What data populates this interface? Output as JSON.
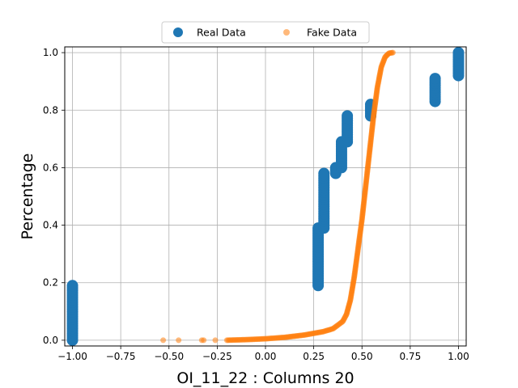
{
  "chart_data": {
    "type": "scatter",
    "title": "",
    "xlabel": "OI_11_22 : Columns 20",
    "ylabel": "Percentage",
    "xlim": [
      -1.04,
      1.04
    ],
    "ylim": [
      -0.02,
      1.02
    ],
    "xticks": [
      -1.0,
      -0.75,
      -0.5,
      -0.25,
      0.0,
      0.25,
      0.5,
      0.75,
      1.0
    ],
    "xtick_labels": [
      "−1.00",
      "−0.75",
      "−0.50",
      "−0.25",
      "0.00",
      "0.25",
      "0.50",
      "0.75",
      "1.00"
    ],
    "yticks": [
      0.0,
      0.2,
      0.4,
      0.6,
      0.8,
      1.0
    ],
    "ytick_labels": [
      "0.0",
      "0.2",
      "0.4",
      "0.6",
      "0.8",
      "1.0"
    ],
    "grid": true,
    "legend": {
      "position": "top-center",
      "ncol": 2
    },
    "series": [
      {
        "name": "Real Data",
        "color": "#1f77b4",
        "marker": "large-circle",
        "segments": [
          {
            "x": -1.0,
            "y_from": 0.0,
            "y_to": 0.19
          },
          {
            "x": 0.273,
            "y_from": 0.19,
            "y_to": 0.39
          },
          {
            "x": 0.303,
            "y_from": 0.39,
            "y_to": 0.58
          },
          {
            "x": 0.364,
            "y_from": 0.58,
            "y_to": 0.6
          },
          {
            "x": 0.394,
            "y_from": 0.6,
            "y_to": 0.69
          },
          {
            "x": 0.424,
            "y_from": 0.69,
            "y_to": 0.78
          },
          {
            "x": 0.545,
            "y_from": 0.78,
            "y_to": 0.82
          },
          {
            "x": 0.879,
            "y_from": 0.83,
            "y_to": 0.91
          },
          {
            "x": 1.0,
            "y_from": 0.92,
            "y_to": 1.0
          }
        ]
      },
      {
        "name": "Fake Data",
        "color": "#ff7f0e",
        "marker": "small-circle",
        "outliers": [
          [
            -0.53,
            0.0
          ],
          [
            -0.45,
            0.0
          ],
          [
            -0.33,
            0.0
          ],
          [
            -0.32,
            0.0
          ],
          [
            -0.26,
            0.0
          ]
        ],
        "curve": [
          [
            -0.2,
            0.0
          ],
          [
            -0.1,
            0.002
          ],
          [
            0.0,
            0.005
          ],
          [
            0.1,
            0.01
          ],
          [
            0.2,
            0.018
          ],
          [
            0.3,
            0.03
          ],
          [
            0.35,
            0.04
          ],
          [
            0.4,
            0.065
          ],
          [
            0.42,
            0.09
          ],
          [
            0.44,
            0.14
          ],
          [
            0.46,
            0.22
          ],
          [
            0.48,
            0.32
          ],
          [
            0.5,
            0.42
          ],
          [
            0.52,
            0.54
          ],
          [
            0.54,
            0.66
          ],
          [
            0.56,
            0.78
          ],
          [
            0.58,
            0.88
          ],
          [
            0.6,
            0.95
          ],
          [
            0.62,
            0.985
          ],
          [
            0.64,
            0.998
          ],
          [
            0.66,
            1.0
          ]
        ]
      }
    ]
  }
}
